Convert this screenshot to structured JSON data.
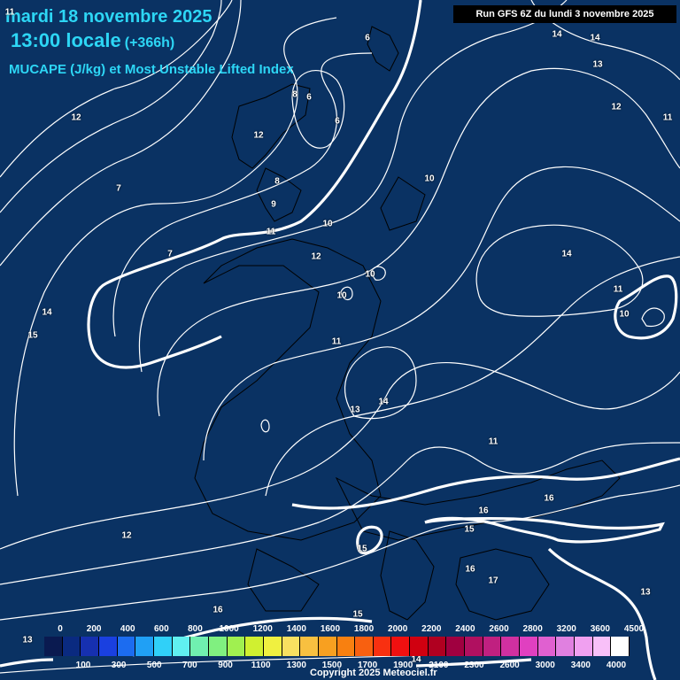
{
  "header": {
    "date": "mardi 18 novembre 2025",
    "time": "13:00 locale",
    "lead": "(+366h)",
    "field": "MUCAPE (J/kg) et Most Unstable Lifted Index"
  },
  "run_info": "Run GFS 6Z du lundi 3 novembre 2025",
  "copyright": "Copyright 2025 Meteociel.fr",
  "legend": {
    "top_ticks": [
      "0",
      "200",
      "400",
      "600",
      "800",
      "1000",
      "1200",
      "1400",
      "1600",
      "1800",
      "2000",
      "2200",
      "2400",
      "2600",
      "2800",
      "3200",
      "3600",
      "4500"
    ],
    "bottom_ticks": [
      "100",
      "300",
      "500",
      "700",
      "900",
      "1100",
      "1300",
      "1500",
      "1700",
      "1900",
      "2100",
      "2300",
      "2600",
      "3000",
      "3400",
      "4000"
    ],
    "colors": [
      "#0a1a50",
      "#0a2a80",
      "#1630b0",
      "#1a40e0",
      "#1c6cf0",
      "#20a0f5",
      "#30d0f8",
      "#60f0f0",
      "#70f0b0",
      "#80f080",
      "#a0f050",
      "#d0f030",
      "#f0f040",
      "#f8e060",
      "#f8c040",
      "#f8a020",
      "#f88010",
      "#f86010",
      "#f83010",
      "#f01010",
      "#d00010",
      "#b00020",
      "#a00040",
      "#b01060",
      "#c02080",
      "#d030a0",
      "#e040c0",
      "#e060d0",
      "#e080e0",
      "#f0a0f0",
      "#f8c0f8",
      "#ffffff"
    ]
  },
  "contour_labels": [
    "6",
    "14",
    "14",
    "13",
    "12",
    "11",
    "7",
    "8",
    "6",
    "6",
    "12",
    "12",
    "10",
    "8",
    "9",
    "10",
    "11",
    "12",
    "11",
    "7",
    "10",
    "14",
    "10",
    "10",
    "11",
    "14",
    "15",
    "13",
    "14",
    "11",
    "12",
    "16",
    "16",
    "15",
    "15",
    "16",
    "17",
    "13",
    "16",
    "15",
    "13",
    "14",
    "11"
  ]
}
